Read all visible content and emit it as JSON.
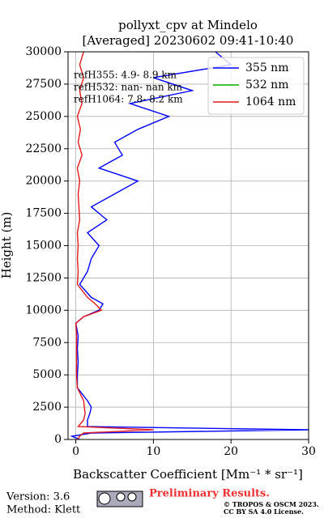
{
  "chart_data": {
    "type": "line",
    "title": "pollyxt_cpv at Mindelo",
    "subtitle": "[Averaged] 20230602 09:41-10:40",
    "x_label": "Backscatter Coefficient [Mm⁻¹ * sr⁻¹]",
    "y_label": "Height (m)",
    "annotations": [
      "refH355:  4.9- 8.9 km",
      "refH532:  nan- nan km",
      "refH1064:  7.8- 8.2 km"
    ],
    "y": [
      0,
      250,
      500,
      750,
      1000,
      1500,
      2000,
      2500,
      3000,
      4000,
      5000,
      6000,
      7000,
      8000,
      9000,
      9500,
      10000,
      10500,
      11000,
      12000,
      13000,
      14000,
      15000,
      16000,
      17000,
      18000,
      19000,
      20000,
      21000,
      22000,
      23000,
      24000,
      25000,
      26000,
      27000,
      28000,
      29000,
      30000
    ],
    "series": [
      {
        "name": "355 nm",
        "color": "#0000ff",
        "values": [
          0.5,
          -0.5,
          2,
          30,
          1.5,
          1.5,
          1.8,
          2,
          1.5,
          0.2,
          0.2,
          0.3,
          0.2,
          0.3,
          0,
          1,
          3,
          3.5,
          2,
          0.5,
          1.5,
          2,
          3,
          1.5,
          4,
          2,
          5,
          8,
          3,
          6,
          5,
          8,
          12,
          7,
          15,
          10,
          20,
          18
        ]
      },
      {
        "name": "532 nm",
        "color": "#00b400",
        "values": [
          null,
          null,
          null,
          null,
          null,
          null,
          null,
          null,
          null,
          null,
          null,
          null,
          null,
          null,
          null,
          null,
          null,
          null,
          null,
          null,
          null,
          null,
          null,
          null,
          null,
          null,
          null,
          null,
          null,
          null,
          null,
          null,
          null,
          null,
          null,
          null,
          null,
          null
        ]
      },
      {
        "name": "1064 nm",
        "color": "#e41a1c",
        "values": [
          0.2,
          0.5,
          1,
          10,
          0.3,
          1,
          1.2,
          1.1,
          1,
          0.2,
          0.1,
          0.1,
          0.1,
          0.1,
          0,
          1,
          3.3,
          2.5,
          1.5,
          0.2,
          0.3,
          0.2,
          0.3,
          0.2,
          0.5,
          0.4,
          0.3,
          0.5,
          0.2,
          0.8,
          0.3,
          0.6,
          0.2,
          0.8,
          0.5,
          1,
          0.5,
          1
        ]
      }
    ],
    "xlim": [
      -1,
      30
    ],
    "xticks": [
      0,
      10,
      20,
      30
    ],
    "ylim": [
      0,
      30000
    ],
    "yticks": [
      0,
      2500,
      5000,
      7500,
      10000,
      12500,
      15000,
      17500,
      20000,
      22500,
      25000,
      27500,
      30000
    ],
    "grid": true,
    "legend": "upper right"
  },
  "footer": {
    "version": "Version: 3.6",
    "method": "Method: Klett",
    "status": "Preliminary Results.",
    "copyright": "© TROPOS & OSCM 2023.",
    "license": "CC BY SA 4.0 License."
  }
}
